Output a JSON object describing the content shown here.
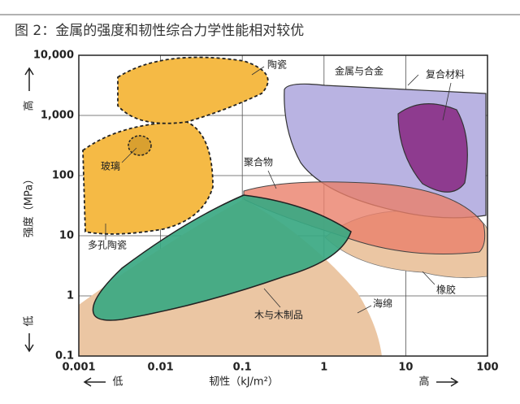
{
  "chart_data": {
    "type": "region",
    "title": "图 2：金属的强度和韧性综合力学性能相对较优",
    "xlabel": "韧性（kJ/m²）",
    "ylabel": "强度（MPa）",
    "y_high": "高",
    "y_low": "低",
    "x_low": "低",
    "x_high": "高",
    "xscale": "log",
    "yscale": "log",
    "grid": true,
    "xlim": [
      0.001,
      100
    ],
    "ylim": [
      0.1,
      10000
    ],
    "xticks": [
      0.001,
      0.01,
      0.1,
      1,
      10,
      100
    ],
    "yticks": [
      0.1,
      1,
      10,
      100,
      {
        "value": 1000,
        "label": "1,000"
      },
      {
        "value": 10000,
        "label": "10,000"
      }
    ],
    "regions": [
      "陶瓷",
      "玻璃",
      "多孔陶瓷",
      "金属与合金",
      "复合材料",
      "聚合物",
      "橡胶",
      "海绵",
      "木与木制品"
    ]
  }
}
